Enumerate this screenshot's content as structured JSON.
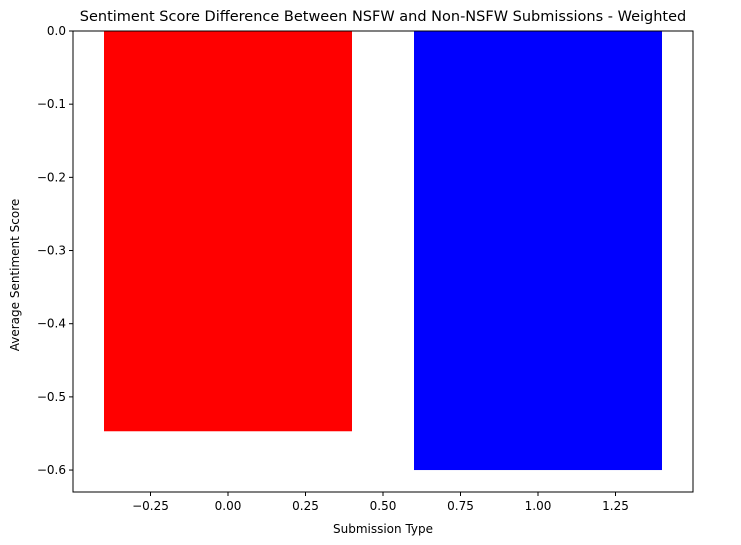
{
  "chart_data": {
    "type": "bar",
    "title": "Sentiment Score Difference Between NSFW and Non-NSFW Submissions - Weighted",
    "xlabel": "Submission Type",
    "ylabel": "Average Sentiment Score",
    "xlim": [
      -0.5,
      1.5
    ],
    "ylim": [
      -0.63,
      0.0
    ],
    "xticks": [
      -0.25,
      0.0,
      0.25,
      0.5,
      0.75,
      1.0,
      1.25
    ],
    "xtick_labels": [
      "−0.25",
      "0.00",
      "0.25",
      "0.50",
      "0.75",
      "1.00",
      "1.25"
    ],
    "yticks": [
      0.0,
      -0.1,
      -0.2,
      -0.3,
      -0.4,
      -0.5,
      -0.6
    ],
    "ytick_labels": [
      "0.0",
      "−0.1",
      "−0.2",
      "−0.3",
      "−0.4",
      "−0.5",
      "−0.6"
    ],
    "grid": false,
    "bar_width": 0.8,
    "bars": [
      {
        "x": 0,
        "value": -0.547,
        "color": "#ff0000"
      },
      {
        "x": 1,
        "value": -0.6,
        "color": "#0000ff"
      }
    ]
  }
}
